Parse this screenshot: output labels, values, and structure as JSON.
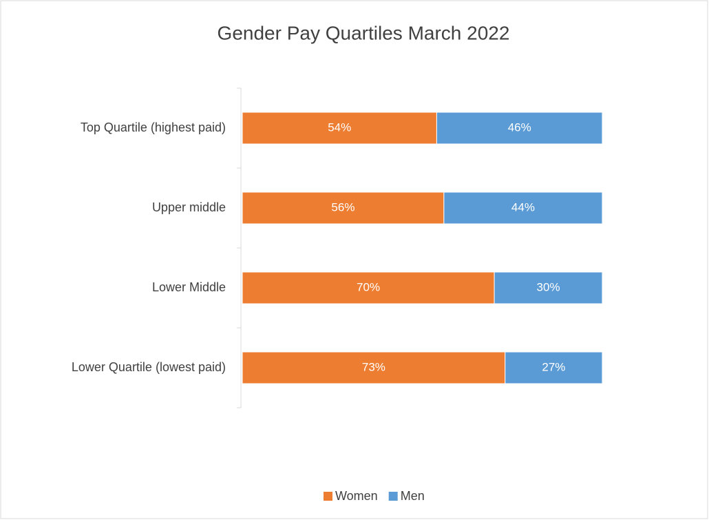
{
  "chart_data": {
    "type": "stacked_bar_horizontal",
    "title": "Gender Pay Quartiles March 2022",
    "categories": [
      "Top Quartile (highest paid)",
      "Upper middle",
      "Lower Middle",
      "Lower Quartile (lowest paid)"
    ],
    "series": [
      {
        "name": "Women",
        "color": "#ED7D31",
        "values": [
          54,
          56,
          70,
          73
        ],
        "value_labels": [
          "54%",
          "56%",
          "70%",
          "73%"
        ]
      },
      {
        "name": "Men",
        "color": "#5B9BD5",
        "values": [
          46,
          44,
          30,
          27
        ],
        "value_labels": [
          "46%",
          "44%",
          "30%",
          "27%"
        ]
      }
    ],
    "legend": "bottom"
  }
}
